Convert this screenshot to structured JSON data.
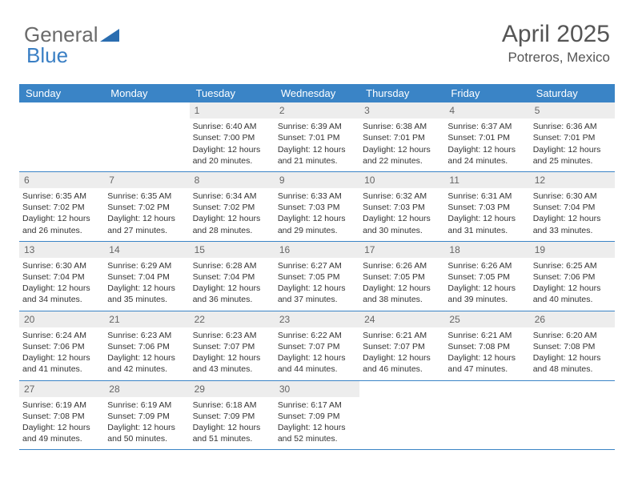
{
  "brand": {
    "part1": "General",
    "part2": "Blue"
  },
  "logo_colors": {
    "text_gray": "#6b6b6b",
    "text_blue": "#3a7fc4",
    "triangle": "#2a6db0"
  },
  "title": {
    "month": "April 2025",
    "location": "Potreros, Mexico"
  },
  "theme": {
    "header_bg": "#3a84c6",
    "header_text": "#ffffff",
    "daynum_bg": "#ededed",
    "daynum_text": "#666666",
    "rule_color": "#3a84c6",
    "body_text": "#333333",
    "page_bg": "#ffffff"
  },
  "dow": [
    "Sunday",
    "Monday",
    "Tuesday",
    "Wednesday",
    "Thursday",
    "Friday",
    "Saturday"
  ],
  "weeks": [
    [
      {
        "empty": true
      },
      {
        "empty": true
      },
      {
        "n": "1",
        "sr": "6:40 AM",
        "ss": "7:00 PM",
        "dl": "12 hours and 20 minutes."
      },
      {
        "n": "2",
        "sr": "6:39 AM",
        "ss": "7:01 PM",
        "dl": "12 hours and 21 minutes."
      },
      {
        "n": "3",
        "sr": "6:38 AM",
        "ss": "7:01 PM",
        "dl": "12 hours and 22 minutes."
      },
      {
        "n": "4",
        "sr": "6:37 AM",
        "ss": "7:01 PM",
        "dl": "12 hours and 24 minutes."
      },
      {
        "n": "5",
        "sr": "6:36 AM",
        "ss": "7:01 PM",
        "dl": "12 hours and 25 minutes."
      }
    ],
    [
      {
        "n": "6",
        "sr": "6:35 AM",
        "ss": "7:02 PM",
        "dl": "12 hours and 26 minutes."
      },
      {
        "n": "7",
        "sr": "6:35 AM",
        "ss": "7:02 PM",
        "dl": "12 hours and 27 minutes."
      },
      {
        "n": "8",
        "sr": "6:34 AM",
        "ss": "7:02 PM",
        "dl": "12 hours and 28 minutes."
      },
      {
        "n": "9",
        "sr": "6:33 AM",
        "ss": "7:03 PM",
        "dl": "12 hours and 29 minutes."
      },
      {
        "n": "10",
        "sr": "6:32 AM",
        "ss": "7:03 PM",
        "dl": "12 hours and 30 minutes."
      },
      {
        "n": "11",
        "sr": "6:31 AM",
        "ss": "7:03 PM",
        "dl": "12 hours and 31 minutes."
      },
      {
        "n": "12",
        "sr": "6:30 AM",
        "ss": "7:04 PM",
        "dl": "12 hours and 33 minutes."
      }
    ],
    [
      {
        "n": "13",
        "sr": "6:30 AM",
        "ss": "7:04 PM",
        "dl": "12 hours and 34 minutes."
      },
      {
        "n": "14",
        "sr": "6:29 AM",
        "ss": "7:04 PM",
        "dl": "12 hours and 35 minutes."
      },
      {
        "n": "15",
        "sr": "6:28 AM",
        "ss": "7:04 PM",
        "dl": "12 hours and 36 minutes."
      },
      {
        "n": "16",
        "sr": "6:27 AM",
        "ss": "7:05 PM",
        "dl": "12 hours and 37 minutes."
      },
      {
        "n": "17",
        "sr": "6:26 AM",
        "ss": "7:05 PM",
        "dl": "12 hours and 38 minutes."
      },
      {
        "n": "18",
        "sr": "6:26 AM",
        "ss": "7:05 PM",
        "dl": "12 hours and 39 minutes."
      },
      {
        "n": "19",
        "sr": "6:25 AM",
        "ss": "7:06 PM",
        "dl": "12 hours and 40 minutes."
      }
    ],
    [
      {
        "n": "20",
        "sr": "6:24 AM",
        "ss": "7:06 PM",
        "dl": "12 hours and 41 minutes."
      },
      {
        "n": "21",
        "sr": "6:23 AM",
        "ss": "7:06 PM",
        "dl": "12 hours and 42 minutes."
      },
      {
        "n": "22",
        "sr": "6:23 AM",
        "ss": "7:07 PM",
        "dl": "12 hours and 43 minutes."
      },
      {
        "n": "23",
        "sr": "6:22 AM",
        "ss": "7:07 PM",
        "dl": "12 hours and 44 minutes."
      },
      {
        "n": "24",
        "sr": "6:21 AM",
        "ss": "7:07 PM",
        "dl": "12 hours and 46 minutes."
      },
      {
        "n": "25",
        "sr": "6:21 AM",
        "ss": "7:08 PM",
        "dl": "12 hours and 47 minutes."
      },
      {
        "n": "26",
        "sr": "6:20 AM",
        "ss": "7:08 PM",
        "dl": "12 hours and 48 minutes."
      }
    ],
    [
      {
        "n": "27",
        "sr": "6:19 AM",
        "ss": "7:08 PM",
        "dl": "12 hours and 49 minutes."
      },
      {
        "n": "28",
        "sr": "6:19 AM",
        "ss": "7:09 PM",
        "dl": "12 hours and 50 minutes."
      },
      {
        "n": "29",
        "sr": "6:18 AM",
        "ss": "7:09 PM",
        "dl": "12 hours and 51 minutes."
      },
      {
        "n": "30",
        "sr": "6:17 AM",
        "ss": "7:09 PM",
        "dl": "12 hours and 52 minutes."
      },
      {
        "empty": true
      },
      {
        "empty": true
      },
      {
        "empty": true
      }
    ]
  ],
  "labels": {
    "sunrise": "Sunrise: ",
    "sunset": "Sunset: ",
    "daylight": "Daylight: "
  }
}
